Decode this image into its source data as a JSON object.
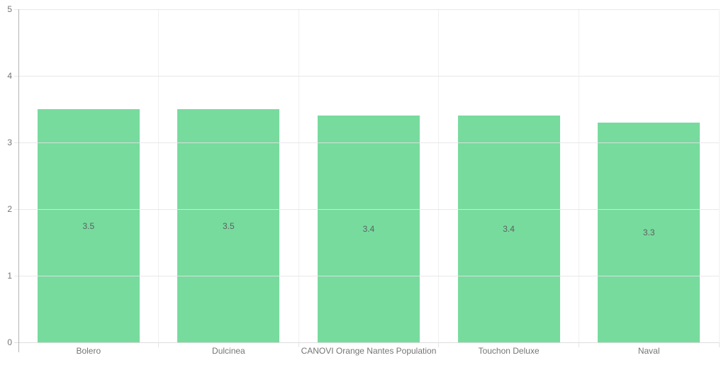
{
  "chart_data": {
    "type": "bar",
    "title": "",
    "xlabel": "",
    "ylabel": "",
    "categories": [
      "Bolero",
      "Dulcinea",
      "CANOVI Orange Nantes Population",
      "Touchon Deluxe",
      "Naval"
    ],
    "values": [
      3.5,
      3.5,
      3.4,
      3.4,
      3.3
    ],
    "bar_labels": [
      "3.5",
      "3.5",
      "3.4",
      "3.4",
      "3.3"
    ],
    "ylim": [
      0,
      5
    ],
    "yticks": [
      "0",
      "1",
      "2",
      "3",
      "4",
      "5"
    ],
    "grid": true,
    "legend": "none",
    "colors": {
      "bar": "#77DB9E",
      "bar_label": "#5f5f5f",
      "axis_tick_label": "#757575",
      "h_gridline": "#e4e4e4",
      "v_gridline": "#f0f0f0",
      "baseline": "#dcdcdc",
      "y_axis_line": "#b5b5b5",
      "background": "#ffffff"
    }
  }
}
